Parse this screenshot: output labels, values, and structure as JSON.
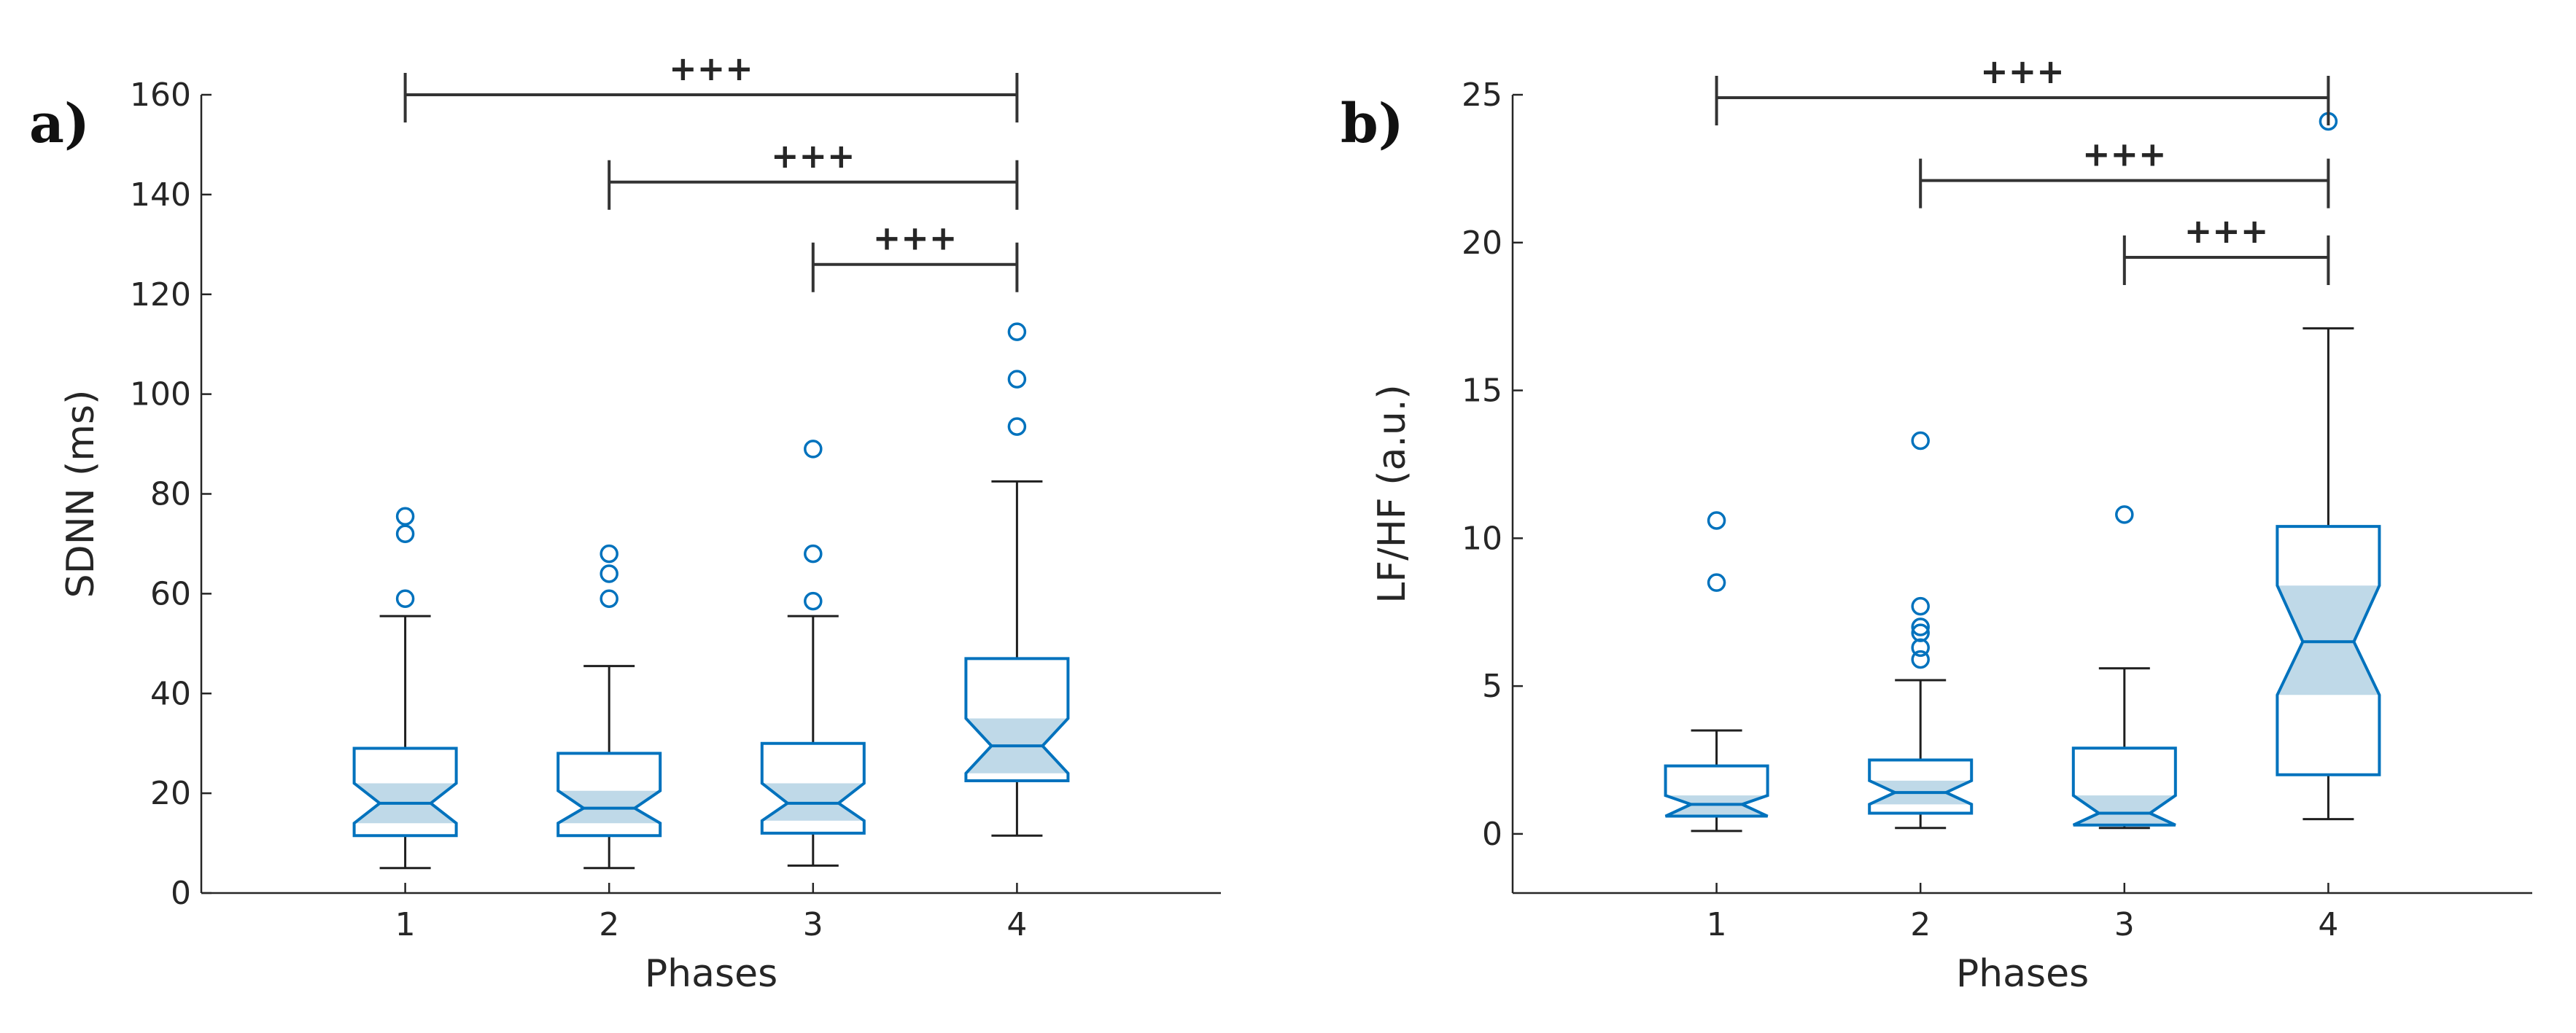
{
  "colors": {
    "box": "#0072BD",
    "notch_fill": "#BFD9E8",
    "axis": "#262626",
    "whisker": "#1f1f1f",
    "bracket": "#333333"
  },
  "chart_data": [
    {
      "type": "box",
      "panel_label": "a)",
      "xlabel": "Phases",
      "ylabel": "SDNN (ms)",
      "categories": [
        "1",
        "2",
        "3",
        "4"
      ],
      "xlim": [
        0,
        5
      ],
      "ylim": [
        0,
        160
      ],
      "yticks": [
        0,
        20,
        40,
        60,
        80,
        100,
        120,
        140,
        160
      ],
      "boxes": [
        {
          "category": "1",
          "whisker_low": 5,
          "q1": 11.5,
          "median": 18,
          "q3": 29,
          "whisker_high": 55.5,
          "notch_low": 14,
          "notch_high": 22,
          "outliers": [
            59,
            72,
            75.5
          ]
        },
        {
          "category": "2",
          "whisker_low": 5,
          "q1": 11.5,
          "median": 17,
          "q3": 28,
          "whisker_high": 45.5,
          "notch_low": 14,
          "notch_high": 20.5,
          "outliers": [
            59,
            64,
            68
          ]
        },
        {
          "category": "3",
          "whisker_low": 5.5,
          "q1": 12,
          "median": 18,
          "q3": 30,
          "whisker_high": 55.5,
          "notch_low": 14.5,
          "notch_high": 22,
          "outliers": [
            58.5,
            68,
            89
          ]
        },
        {
          "category": "4",
          "whisker_low": 11.5,
          "q1": 22.5,
          "median": 29.5,
          "q3": 47,
          "whisker_high": 82.5,
          "notch_low": 24,
          "notch_high": 35,
          "outliers": [
            93.5,
            103,
            112.5
          ]
        }
      ],
      "significance": [
        {
          "from": "1",
          "to": "4",
          "y": 160,
          "label": "+++"
        },
        {
          "from": "2",
          "to": "4",
          "y": 142.5,
          "label": "+++"
        },
        {
          "from": "3",
          "to": "4",
          "y": 126,
          "label": "+++"
        }
      ]
    },
    {
      "type": "box",
      "panel_label": "b)",
      "xlabel": "Phases",
      "ylabel": "LF/HF (a.u.)",
      "categories": [
        "1",
        "2",
        "3",
        "4"
      ],
      "xlim": [
        0,
        5
      ],
      "ylim": [
        -2,
        25
      ],
      "yticks": [
        0,
        5,
        10,
        15,
        20,
        25
      ],
      "boxes": [
        {
          "category": "1",
          "whisker_low": 0.1,
          "q1": 0.6,
          "median": 1.0,
          "q3": 2.3,
          "whisker_high": 3.5,
          "notch_low": 0.6,
          "notch_high": 1.3,
          "outliers": [
            8.5,
            10.6
          ]
        },
        {
          "category": "2",
          "whisker_low": 0.2,
          "q1": 0.7,
          "median": 1.4,
          "q3": 2.5,
          "whisker_high": 5.2,
          "notch_low": 1.0,
          "notch_high": 1.8,
          "outliers": [
            5.9,
            6.3,
            6.8,
            7.0,
            7.7,
            13.3
          ]
        },
        {
          "category": "3",
          "whisker_low": 0.2,
          "q1": 0.3,
          "median": 0.7,
          "q3": 2.9,
          "whisker_high": 5.6,
          "notch_low": 0.3,
          "notch_high": 1.3,
          "outliers": [
            10.8
          ]
        },
        {
          "category": "4",
          "whisker_low": 0.5,
          "q1": 2.0,
          "median": 6.5,
          "q3": 10.4,
          "whisker_high": 17.1,
          "notch_low": 4.7,
          "notch_high": 8.4,
          "outliers": [
            24.1
          ]
        }
      ],
      "significance": [
        {
          "from": "1",
          "to": "4",
          "y": 24.9,
          "label": "+++"
        },
        {
          "from": "2",
          "to": "4",
          "y": 22.1,
          "label": "+++"
        },
        {
          "from": "3",
          "to": "4",
          "y": 19.5,
          "label": "+++"
        }
      ]
    }
  ]
}
